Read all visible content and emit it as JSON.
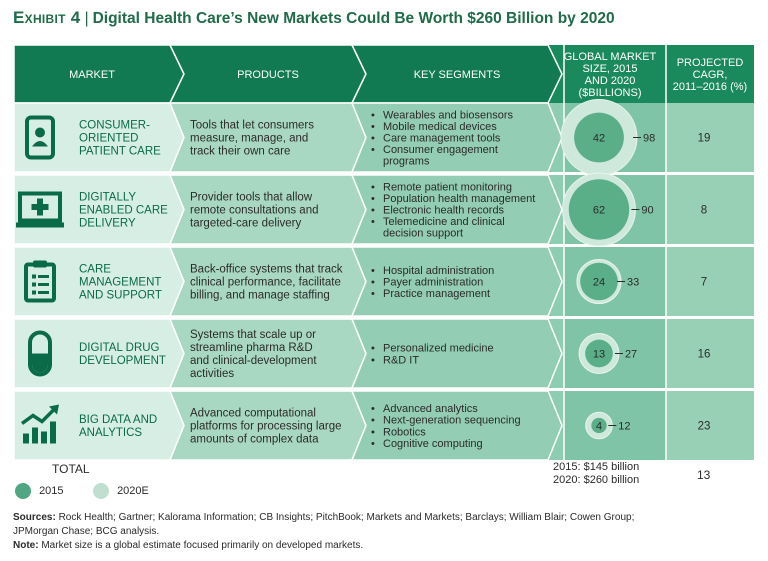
{
  "title": {
    "label": "Exhibit 4",
    "text": "Digital Health Care’s New Markets Could Be Worth $260 Billion by 2020"
  },
  "headers": {
    "market": "MARKET",
    "products": "PRODUCTS",
    "segments": "KEY SEGMENTS",
    "size": [
      "GLOBAL MARKET",
      "SIZE, 2015",
      "AND 2020",
      "($BILLIONS)"
    ],
    "cagr": [
      "PROJECTED",
      "CAGR,",
      "2011–2016 (%)"
    ]
  },
  "rows": [
    {
      "icon": "smartphone-user-icon",
      "name": [
        "CONSUMER-",
        "ORIENTED",
        "PATIENT CARE"
      ],
      "products": [
        "Tools that let consumers",
        "measure, manage, and",
        "track their own care"
      ],
      "segments": [
        [
          "Wearables and biosensors"
        ],
        [
          "Mobile medical devices"
        ],
        [
          "Care management tools"
        ],
        [
          "Consumer engagement",
          "programs"
        ]
      ]
    },
    {
      "icon": "laptop-medical-cross-icon",
      "name": [
        "DIGITALLY",
        "ENABLED CARE",
        "DELIVERY"
      ],
      "products": [
        "Provider tools that allow",
        "remote consultations and",
        "targeted-care delivery"
      ],
      "segments": [
        [
          "Remote patient monitoring"
        ],
        [
          "Population health management"
        ],
        [
          "Electronic health records"
        ],
        [
          "Telemedicine and clinical",
          "decision support"
        ]
      ]
    },
    {
      "icon": "clipboard-list-icon",
      "name": [
        "CARE",
        "MANAGEMENT",
        "AND SUPPORT"
      ],
      "products": [
        "Back-office systems that track",
        "clinical performance, facilitate",
        "billing, and manage staffing"
      ],
      "segments": [
        [
          "Hospital administration"
        ],
        [
          "Payer administration"
        ],
        [
          "Practice management"
        ]
      ]
    },
    {
      "icon": "pill-capsule-icon",
      "name": [
        "DIGITAL DRUG",
        "DEVELOPMENT"
      ],
      "products": [
        "Systems that scale up or",
        "streamline pharma R&D",
        "and clinical-development",
        "activities"
      ],
      "segments": [
        [
          "Personalized medicine"
        ],
        [
          "R&D IT"
        ]
      ]
    },
    {
      "icon": "analytics-chart-icon",
      "name": [
        "BIG DATA AND",
        "ANALYTICS"
      ],
      "products": [
        "Advanced computational",
        "platforms for processing large",
        "amounts of complex data"
      ],
      "segments": [
        [
          "Advanced analytics"
        ],
        [
          "Next-generation sequencing"
        ],
        [
          "Robotics"
        ],
        [
          "Cognitive computing"
        ]
      ]
    }
  ],
  "chart_data": {
    "type": "bubble",
    "title": "Global market size, 2015 and 2020 ($billions)",
    "categories": [
      "Consumer-oriented patient care",
      "Digitally enabled care delivery",
      "Care management and support",
      "Digital drug development",
      "Big data and analytics"
    ],
    "series": [
      {
        "name": "2015",
        "values": [
          42,
          62,
          24,
          13,
          4
        ]
      },
      {
        "name": "2020E",
        "values": [
          98,
          90,
          33,
          27,
          12
        ]
      }
    ],
    "cagr_pct": [
      19,
      8,
      7,
      16,
      23
    ],
    "total": {
      "label": "TOTAL",
      "size_2015": "2015: $145 billion",
      "size_2020": "2020: $260 billion",
      "cagr": 13
    }
  },
  "legend": {
    "y2015": "2015",
    "y2020": "2020E"
  },
  "colors": {
    "dark": "#127a52",
    "header": "#1a8a5c",
    "row": "#8fcdb3",
    "rowAlt": "#b5ddca",
    "bubble2015": "#4fa781",
    "bubble2020": "#cfe8dc",
    "accent": "#0a6b49"
  },
  "footnotes": {
    "sources_label": "Sources:",
    "sources": "Rock Health; Gartner; Kalorama Information; CB Insights; PitchBook; Markets and Markets; Barclays; William Blair; Cowen Group;",
    "sources2": "JPMorgan Chase; BCG analysis.",
    "note_label": "Note:",
    "note": "Market size is a global estimate focused primarily on developed markets."
  }
}
